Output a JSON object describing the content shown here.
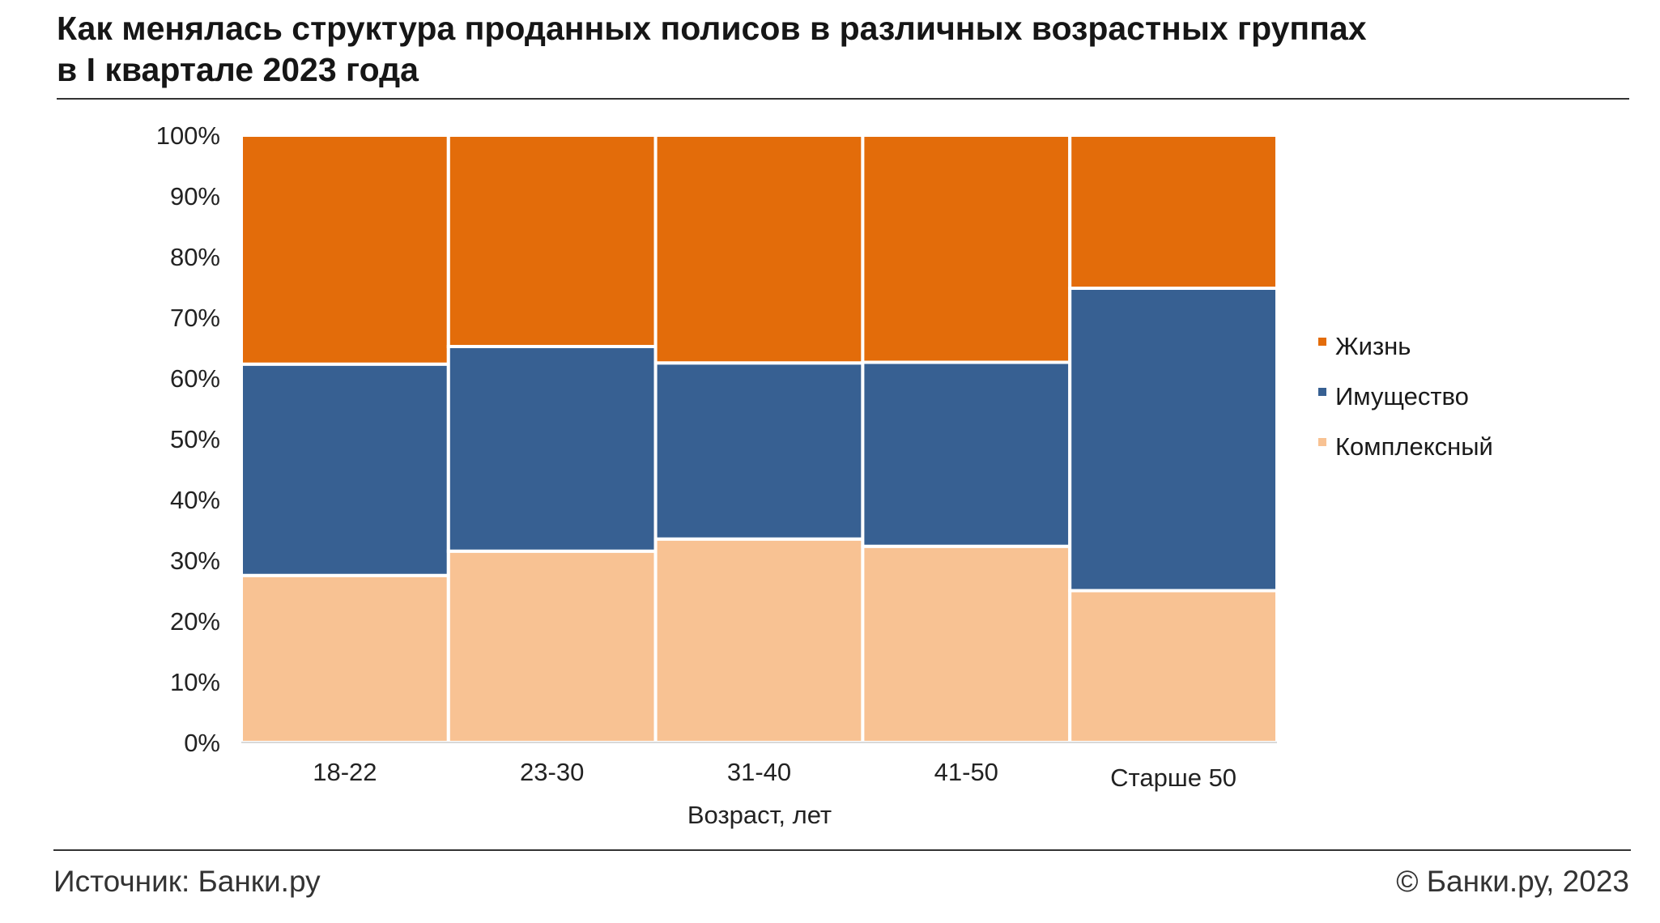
{
  "header": {
    "title_line1": "Как менялась структура проданных полисов в различных возрастных группах",
    "title_line2": "в I квартале 2023 года"
  },
  "footer": {
    "source": "Источник: Банки.ру",
    "copyright": "© Банки.ру, 2023"
  },
  "chart_data": {
    "type": "bar",
    "stacked": true,
    "percent": true,
    "title": "Как менялась структура проданных полисов в различных возрастных группах в I квартале 2023 года",
    "xlabel": "Возраст, лет",
    "ylabel": "",
    "categories": [
      "18-22",
      "23-30",
      "31-40",
      "41-50",
      "Старше 50"
    ],
    "ylim": [
      0,
      100
    ],
    "yticks": [
      "0%",
      "10%",
      "20%",
      "30%",
      "40%",
      "50%",
      "60%",
      "70%",
      "80%",
      "90%",
      "100%"
    ],
    "grid": false,
    "legend_position": "right",
    "series": [
      {
        "name": "Комплексный",
        "color": "#F8C293",
        "values": [
          27.5,
          31.5,
          33.5,
          32.3,
          25.0
        ]
      },
      {
        "name": "Имущество",
        "color": "#376092",
        "values": [
          34.8,
          33.7,
          29.0,
          30.3,
          49.8
        ]
      },
      {
        "name": "Жизнь",
        "color": "#E36C0A",
        "values": [
          37.7,
          34.8,
          37.5,
          37.4,
          25.2
        ]
      }
    ],
    "legend_order": [
      "Жизнь",
      "Имущество",
      "Комплексный"
    ]
  }
}
